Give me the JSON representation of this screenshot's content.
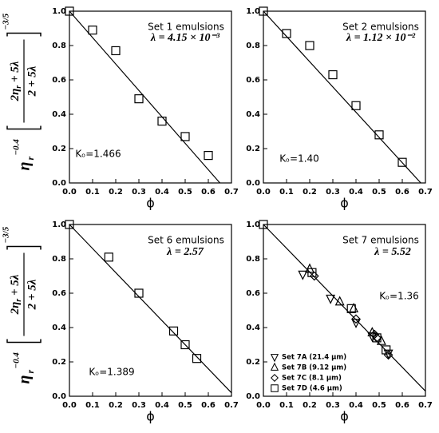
{
  "chart_data": [
    {
      "type": "scatter",
      "title": "Set 1 emulsions",
      "lambda": "λ = 4.15 × 10⁻³",
      "k0": "Kₒ=1.466",
      "xlabel": "ϕ",
      "ylabel": {
        "base": "η",
        "base_sub": "r",
        "base_exp": "−0.4",
        "numerator": "2η",
        "numerator_sub": "r",
        "numerator_rest": " + 5λ",
        "denominator": "2 + 5λ",
        "exp": "−3/5"
      },
      "xlim": [
        0,
        0.7
      ],
      "ylim": [
        0,
        1
      ],
      "xticks": [
        {
          "value": 0,
          "label": "0.0"
        },
        {
          "value": 0.1,
          "label": "0.1"
        },
        {
          "value": 0.2,
          "label": "0.2"
        },
        {
          "value": 0.3,
          "label": "0.3"
        },
        {
          "value": 0.4,
          "label": "0.4"
        },
        {
          "value": 0.5,
          "label": "0.5"
        },
        {
          "value": 0.6,
          "label": "0.6"
        },
        {
          "value": 0.7,
          "label": "0.7"
        }
      ],
      "yticks": [
        {
          "value": 0,
          "label": "0.0"
        },
        {
          "value": 0.2,
          "label": "0.2"
        },
        {
          "value": 0.4,
          "label": "0.4"
        },
        {
          "value": 0.6,
          "label": "0.6"
        },
        {
          "value": 0.8,
          "label": "0.8"
        },
        {
          "value": 1,
          "label": "1.0"
        }
      ],
      "series": [
        {
          "marker": "square",
          "color": "#000000",
          "x": [
            0,
            0.1,
            0.2,
            0.3,
            0.4,
            0.5,
            0.6
          ],
          "y": [
            1.0,
            0.89,
            0.77,
            0.49,
            0.36,
            0.27,
            0.16
          ]
        }
      ],
      "fit_line": {
        "x": [
          0,
          0.65
        ],
        "y": [
          1,
          0
        ]
      }
    },
    {
      "type": "scatter",
      "title": "Set 2 emulsions",
      "lambda": "λ = 1.12 × 10⁻²",
      "k0": "Kₒ=1.40",
      "xlabel": "ϕ",
      "xlim": [
        0,
        0.7
      ],
      "ylim": [
        0,
        1
      ],
      "xticks": [
        {
          "value": 0,
          "label": "0.0"
        },
        {
          "value": 0.1,
          "label": "0.1"
        },
        {
          "value": 0.2,
          "label": "0.2"
        },
        {
          "value": 0.3,
          "label": "0.3"
        },
        {
          "value": 0.4,
          "label": "0.4"
        },
        {
          "value": 0.5,
          "label": "0.5"
        },
        {
          "value": 0.6,
          "label": "0.6"
        },
        {
          "value": 0.7,
          "label": "0.7"
        }
      ],
      "yticks": [
        {
          "value": 0,
          "label": "0.0"
        },
        {
          "value": 0.2,
          "label": "0.2"
        },
        {
          "value": 0.4,
          "label": "0.4"
        },
        {
          "value": 0.6,
          "label": "0.6"
        },
        {
          "value": 0.8,
          "label": "0.8"
        },
        {
          "value": 1,
          "label": "1.0"
        }
      ],
      "series": [
        {
          "marker": "square",
          "color": "#000000",
          "x": [
            0,
            0.1,
            0.2,
            0.3,
            0.4,
            0.5,
            0.6
          ],
          "y": [
            1.0,
            0.87,
            0.8,
            0.63,
            0.45,
            0.28,
            0.12
          ]
        }
      ],
      "fit_line": {
        "x": [
          0,
          0.68
        ],
        "y": [
          1,
          0
        ]
      }
    },
    {
      "type": "scatter",
      "title": "Set 6 emulsions",
      "lambda": "λ = 2.57",
      "k0": "Kₒ=1.389",
      "xlabel": "ϕ",
      "ylabel": {
        "base": "η",
        "base_sub": "r",
        "base_exp": "−0.4",
        "numerator": "2η",
        "numerator_sub": "r",
        "numerator_rest": " + 5λ",
        "denominator": "2 + 5λ",
        "exp": "−3/5"
      },
      "xlim": [
        0,
        0.7
      ],
      "ylim": [
        0,
        1
      ],
      "xticks": [
        {
          "value": 0,
          "label": "0.0"
        },
        {
          "value": 0.1,
          "label": "0.1"
        },
        {
          "value": 0.2,
          "label": "0.2"
        },
        {
          "value": 0.3,
          "label": "0.3"
        },
        {
          "value": 0.4,
          "label": "0.4"
        },
        {
          "value": 0.5,
          "label": "0.5"
        },
        {
          "value": 0.6,
          "label": "0.6"
        },
        {
          "value": 0.7,
          "label": "0.7"
        }
      ],
      "yticks": [
        {
          "value": 0,
          "label": "0.0"
        },
        {
          "value": 0.2,
          "label": "0.2"
        },
        {
          "value": 0.4,
          "label": "0.4"
        },
        {
          "value": 0.6,
          "label": "0.6"
        },
        {
          "value": 0.8,
          "label": "0.8"
        },
        {
          "value": 1,
          "label": "1.0"
        }
      ],
      "series": [
        {
          "marker": "square",
          "color": "#000000",
          "x": [
            0,
            0.17,
            0.3,
            0.45,
            0.5,
            0.55
          ],
          "y": [
            1.0,
            0.81,
            0.6,
            0.38,
            0.3,
            0.22
          ]
        }
      ],
      "fit_line": {
        "x": [
          0,
          0.7
        ],
        "y": [
          1,
          0.02
        ]
      }
    },
    {
      "type": "scatter",
      "title": "Set 7 emulsions",
      "lambda": "λ = 5.52",
      "k0": "Kₒ=1.36",
      "xlabel": "ϕ",
      "legend": "lower left",
      "xlim": [
        0,
        0.7
      ],
      "ylim": [
        0,
        1
      ],
      "xticks": [
        {
          "value": 0,
          "label": "0.0"
        },
        {
          "value": 0.1,
          "label": "0.1"
        },
        {
          "value": 0.2,
          "label": "0.2"
        },
        {
          "value": 0.3,
          "label": "0.3"
        },
        {
          "value": 0.4,
          "label": "0.4"
        },
        {
          "value": 0.5,
          "label": "0.5"
        },
        {
          "value": 0.6,
          "label": "0.6"
        },
        {
          "value": 0.7,
          "label": "0.7"
        }
      ],
      "yticks": [
        {
          "value": 0,
          "label": "0.0"
        },
        {
          "value": 0.2,
          "label": "0.2"
        },
        {
          "value": 0.4,
          "label": "0.4"
        },
        {
          "value": 0.6,
          "label": "0.6"
        },
        {
          "value": 0.8,
          "label": "0.8"
        },
        {
          "value": 1,
          "label": "1.0"
        }
      ],
      "series": [
        {
          "name": "Set 7A (21.4 μm)",
          "marker": "triangle-down",
          "color": "#000000",
          "x": [
            0.17,
            0.29,
            0.4,
            0.47,
            0.54
          ],
          "y": [
            0.71,
            0.57,
            0.43,
            0.35,
            0.25
          ]
        },
        {
          "name": "Set 7B (9.12 μm)",
          "marker": "triangle-up",
          "color": "#000000",
          "x": [
            0.2,
            0.33,
            0.39,
            0.47,
            0.51
          ],
          "y": [
            0.74,
            0.55,
            0.51,
            0.37,
            0.32
          ]
        },
        {
          "name": "Set 7C (8.1 μm)",
          "marker": "diamond",
          "color": "#000000",
          "x": [
            0.22,
            0.4,
            0.48,
            0.49,
            0.54
          ],
          "y": [
            0.7,
            0.45,
            0.36,
            0.34,
            0.24
          ]
        },
        {
          "name": "Set 7D (4.6 μm)",
          "marker": "square",
          "color": "#000000",
          "x": [
            0,
            0.21,
            0.38,
            0.49,
            0.53
          ],
          "y": [
            1.0,
            0.72,
            0.51,
            0.34,
            0.27
          ]
        }
      ],
      "fit_line": {
        "x": [
          0,
          0.7
        ],
        "y": [
          1,
          0.03
        ]
      }
    }
  ]
}
